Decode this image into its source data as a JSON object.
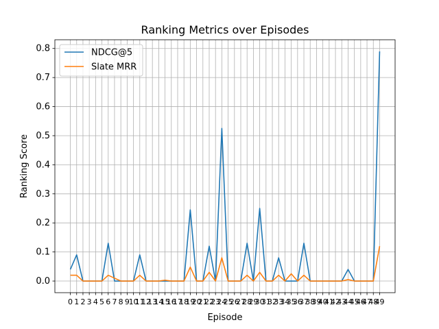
{
  "chart_data": {
    "type": "line",
    "title": "Ranking Metrics over Episodes",
    "xlabel": "Episode",
    "ylabel": "Ranking Score",
    "xlim": [
      -2.45,
      51.45
    ],
    "ylim": [
      -0.04,
      0.83
    ],
    "grid": true,
    "legend_position": "top-left",
    "x": [
      0,
      1,
      2,
      3,
      4,
      5,
      6,
      7,
      8,
      9,
      10,
      11,
      12,
      13,
      14,
      15,
      16,
      17,
      18,
      19,
      20,
      21,
      22,
      23,
      24,
      25,
      26,
      27,
      28,
      29,
      30,
      31,
      32,
      33,
      34,
      35,
      36,
      37,
      38,
      39,
      40,
      41,
      42,
      43,
      44,
      45,
      46,
      47,
      48,
      49
    ],
    "x_tick_labels": [
      "0",
      "1",
      "2",
      "3",
      "4",
      "5",
      "6",
      "7",
      "8",
      "9",
      "10",
      "11",
      "12",
      "13",
      "14",
      "15",
      "16",
      "17",
      "18",
      "19",
      "20",
      "21",
      "22",
      "23",
      "24",
      "25",
      "26",
      "27",
      "28",
      "29",
      "30",
      "31",
      "32",
      "33",
      "34",
      "35",
      "36",
      "37",
      "38",
      "39",
      "40",
      "41",
      "42",
      "43",
      "44",
      "45",
      "46",
      "47",
      "48",
      "49"
    ],
    "y_ticks": [
      0.0,
      0.1,
      0.2,
      0.3,
      0.4,
      0.5,
      0.6,
      0.7,
      0.8
    ],
    "y_tick_labels": [
      "0.0",
      "0.1",
      "0.2",
      "0.3",
      "0.4",
      "0.5",
      "0.6",
      "0.7",
      "0.8"
    ],
    "series": [
      {
        "name": "NDCG@5",
        "color": "#1f77b4",
        "values": [
          0.04,
          0.09,
          0.0,
          0.0,
          0.0,
          0.0,
          0.13,
          0.0,
          0.0,
          0.0,
          0.0,
          0.09,
          0.0,
          0.0,
          0.0,
          0.0,
          0.0,
          0.0,
          0.0,
          0.245,
          0.0,
          0.0,
          0.12,
          0.0,
          0.525,
          0.0,
          0.0,
          0.0,
          0.13,
          0.0,
          0.25,
          0.0,
          0.0,
          0.08,
          0.0,
          0.0,
          0.0,
          0.13,
          0.0,
          0.0,
          0.0,
          0.0,
          0.0,
          0.0,
          0.04,
          0.0,
          0.0,
          0.0,
          0.0,
          0.79
        ]
      },
      {
        "name": "Slate MRR",
        "color": "#ff7f0e",
        "values": [
          0.02,
          0.02,
          0.0,
          0.0,
          0.0,
          0.0,
          0.02,
          0.01,
          0.0,
          0.0,
          0.0,
          0.02,
          0.0,
          0.0,
          0.0,
          0.003,
          0.0,
          0.0,
          0.0,
          0.048,
          0.0,
          0.0,
          0.03,
          0.0,
          0.08,
          0.0,
          0.0,
          0.0,
          0.02,
          0.0,
          0.03,
          0.0,
          0.0,
          0.02,
          0.0,
          0.025,
          0.0,
          0.02,
          0.0,
          0.0,
          0.0,
          0.0,
          0.0,
          0.0,
          0.005,
          0.0,
          0.0,
          0.0,
          0.0,
          0.12
        ]
      }
    ]
  }
}
